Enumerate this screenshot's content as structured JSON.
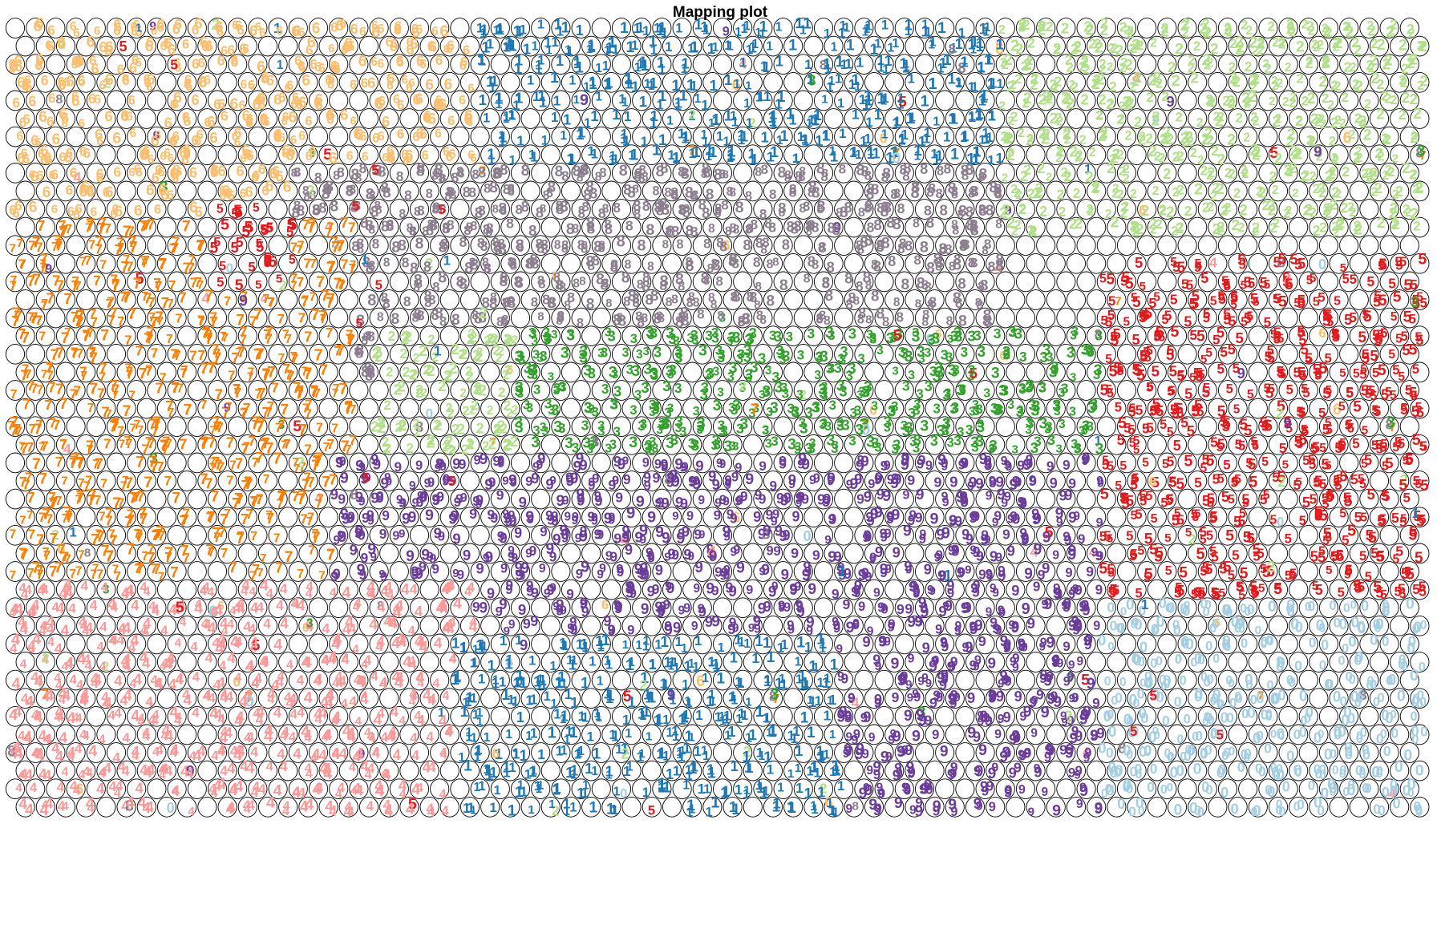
{
  "title": "Mapping plot",
  "chart_data": {
    "type": "scatter",
    "title": "Mapping plot",
    "plot_kind": "self-organizing map (hexagonal grid of circular nodes, digit labels jittered inside nodes)",
    "grid": {
      "columns": 70,
      "rows": 44
    },
    "node_style": {
      "fill": "none",
      "stroke": "#000000"
    },
    "labels": [
      "0",
      "1",
      "2",
      "3",
      "4",
      "5",
      "6",
      "7",
      "8",
      "9"
    ],
    "label_colors": {
      "0": "#A6CEE3",
      "1": "#1F78B4",
      "2": "#B2DF8A",
      "3": "#33A02C",
      "4": "#FB9A99",
      "5": "#E31A1C",
      "6": "#FDBF6F",
      "7": "#FF7F00",
      "8": "#8C7E8F",
      "9": "#6A3D9A"
    },
    "regions": [
      {
        "label": "6",
        "col_range": [
          0,
          22
        ],
        "row_range": [
          0,
          10
        ]
      },
      {
        "label": "1",
        "col_range": [
          23,
          48
        ],
        "row_range": [
          0,
          10
        ]
      },
      {
        "label": "2",
        "col_range": [
          49,
          69
        ],
        "row_range": [
          0,
          11
        ]
      },
      {
        "label": "8",
        "col_range": [
          14,
          48
        ],
        "row_range": [
          8,
          19
        ]
      },
      {
        "label": "7",
        "col_range": [
          0,
          16
        ],
        "row_range": [
          11,
          30
        ]
      },
      {
        "label": "5",
        "col_range": [
          10,
          13
        ],
        "row_range": [
          10,
          14
        ]
      },
      {
        "label": "5",
        "col_range": [
          54,
          69
        ],
        "row_range": [
          13,
          32
        ]
      },
      {
        "label": "3",
        "col_range": [
          22,
          53
        ],
        "row_range": [
          17,
          31
        ]
      },
      {
        "label": "2",
        "col_range": [
          18,
          24
        ],
        "row_range": [
          17,
          23
        ]
      },
      {
        "label": "9",
        "col_range": [
          16,
          53
        ],
        "row_range": [
          24,
          43
        ]
      },
      {
        "label": "4",
        "col_range": [
          0,
          22
        ],
        "row_range": [
          31,
          43
        ]
      },
      {
        "label": "1",
        "col_range": [
          22,
          40
        ],
        "row_range": [
          34,
          43
        ]
      },
      {
        "label": "0",
        "col_range": [
          54,
          69
        ],
        "row_range": [
          32,
          43
        ]
      }
    ]
  }
}
